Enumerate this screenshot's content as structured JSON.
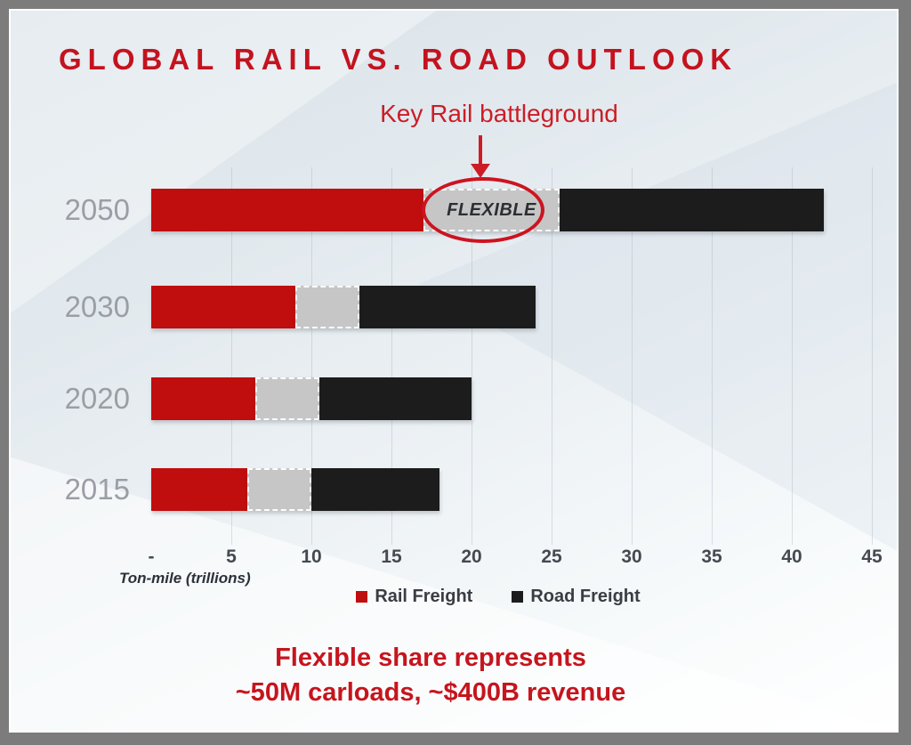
{
  "title": "GLOBAL RAIL VS. ROAD OUTLOOK",
  "annotation": {
    "label": "Key Rail battleground",
    "flexible_label": "FLEXIBLE",
    "target_category": "2050"
  },
  "chart_data": {
    "type": "bar",
    "orientation": "horizontal",
    "stacked": true,
    "title": "GLOBAL RAIL VS. ROAD OUTLOOK",
    "categories": [
      "2050",
      "2030",
      "2020",
      "2015"
    ],
    "series": [
      {
        "name": "Rail Freight",
        "color": "#c00d0d",
        "values": [
          17,
          9,
          6.5,
          6
        ]
      },
      {
        "name": "Flexible",
        "color": "#c6c6c6",
        "values": [
          8.5,
          4,
          4,
          4
        ]
      },
      {
        "name": "Road Freight",
        "color": "#1c1c1c",
        "values": [
          16.5,
          11,
          9.5,
          8
        ]
      }
    ],
    "xlabel": "Ton-mile (trillions)",
    "x_tick_labels": [
      "-",
      "5",
      "10",
      "15",
      "20",
      "25",
      "30",
      "35",
      "40",
      "45"
    ],
    "x_tick_step": 5,
    "xlim": [
      0,
      45
    ],
    "grid": true,
    "legend": [
      {
        "label": "Rail Freight",
        "color": "#c00d0d"
      },
      {
        "label": "Road Freight",
        "color": "#1c1c1c"
      }
    ],
    "legend_position": "bottom"
  },
  "footnote": {
    "line1": "Flexible share represents",
    "line2": "~50M carloads, ~$400B revenue"
  },
  "colors": {
    "accent_red": "#c4121d",
    "bar_red": "#c00d0d",
    "bar_black": "#1c1c1c",
    "bar_gray": "#c6c6c6",
    "year_label_gray": "#9b9ea5"
  }
}
